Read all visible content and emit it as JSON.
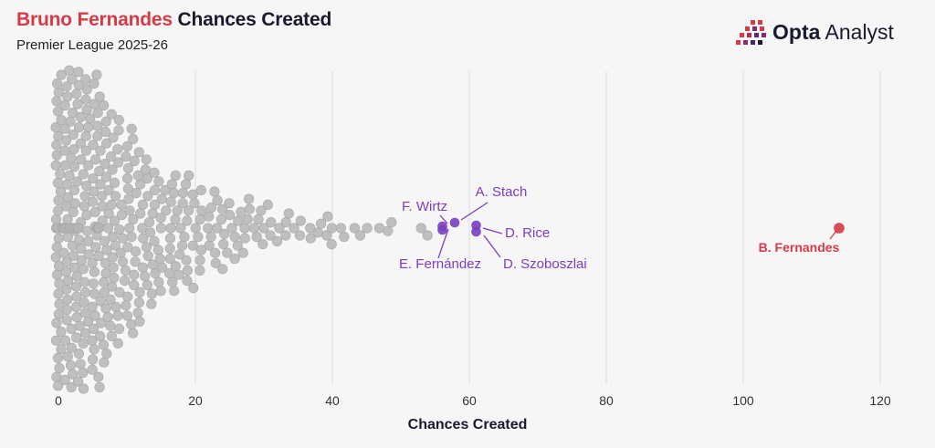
{
  "title": {
    "highlight": "Bruno Fernandes",
    "rest": "Chances Created"
  },
  "subtitle": "Premier League 2025-26",
  "brand": {
    "bold": "Opta",
    "light": "Analyst"
  },
  "colors": {
    "accent": "#d63a46",
    "highlight": "#7a3fc0",
    "dots": "#b5b5b5",
    "grid": "#dcdcdc",
    "text": "#1a1a2e"
  },
  "chart_data": {
    "type": "scatter",
    "subtype": "beeswarm",
    "title": "Bruno Fernandes Chances Created",
    "subtitle": "Premier League 2025-26",
    "xlabel": "Chances Created",
    "xlim": [
      0,
      120
    ],
    "x_ticks": [
      0,
      20,
      40,
      60,
      80,
      100,
      120
    ],
    "grid": "vertical",
    "highlighted": [
      {
        "label": "B. Fernandes",
        "x": 114,
        "color": "#d63a46"
      },
      {
        "label": "A. Stach",
        "x": 58,
        "color": "#7a3fc0"
      },
      {
        "label": "F. Wirtz",
        "x": 57,
        "color": "#7a3fc0"
      },
      {
        "label": "E. Fernández",
        "x": 57,
        "color": "#7a3fc0"
      },
      {
        "label": "D. Rice",
        "x": 61,
        "color": "#7a3fc0"
      },
      {
        "label": "D. Szoboszlai",
        "x": 61,
        "color": "#7a3fc0"
      }
    ],
    "others": [
      {
        "x": 0,
        "count": 42
      },
      {
        "x": 1,
        "count": 38
      },
      {
        "x": 2,
        "count": 30
      },
      {
        "x": 3,
        "count": 34
      },
      {
        "x": 4,
        "count": 26
      },
      {
        "x": 5,
        "count": 22
      },
      {
        "x": 6,
        "count": 24
      },
      {
        "x": 7,
        "count": 20
      },
      {
        "x": 8,
        "count": 18
      },
      {
        "x": 9,
        "count": 14
      },
      {
        "x": 10,
        "count": 14
      },
      {
        "x": 11,
        "count": 12
      },
      {
        "x": 12,
        "count": 12
      },
      {
        "x": 13,
        "count": 10
      },
      {
        "x": 14,
        "count": 9
      },
      {
        "x": 15,
        "count": 9
      },
      {
        "x": 16,
        "count": 8
      },
      {
        "x": 17,
        "count": 8
      },
      {
        "x": 18,
        "count": 7
      },
      {
        "x": 19,
        "count": 7
      },
      {
        "x": 20,
        "count": 6
      },
      {
        "x": 21,
        "count": 6
      },
      {
        "x": 22,
        "count": 5
      },
      {
        "x": 23,
        "count": 5
      },
      {
        "x": 24,
        "count": 5
      },
      {
        "x": 25,
        "count": 4
      },
      {
        "x": 26,
        "count": 4
      },
      {
        "x": 27,
        "count": 4
      },
      {
        "x": 28,
        "count": 3
      },
      {
        "x": 29,
        "count": 3
      },
      {
        "x": 30,
        "count": 3
      },
      {
        "x": 31,
        "count": 3
      },
      {
        "x": 32,
        "count": 2
      },
      {
        "x": 33,
        "count": 2
      },
      {
        "x": 34,
        "count": 2
      },
      {
        "x": 35,
        "count": 2
      },
      {
        "x": 37,
        "count": 2
      },
      {
        "x": 38,
        "count": 2
      },
      {
        "x": 39,
        "count": 2
      },
      {
        "x": 40,
        "count": 2
      },
      {
        "x": 41,
        "count": 1
      },
      {
        "x": 42,
        "count": 1
      },
      {
        "x": 43,
        "count": 1
      },
      {
        "x": 44,
        "count": 1
      },
      {
        "x": 45,
        "count": 1
      },
      {
        "x": 47,
        "count": 1
      },
      {
        "x": 48,
        "count": 1
      },
      {
        "x": 49,
        "count": 1
      },
      {
        "x": 53,
        "count": 1
      },
      {
        "x": 54,
        "count": 1
      }
    ]
  }
}
